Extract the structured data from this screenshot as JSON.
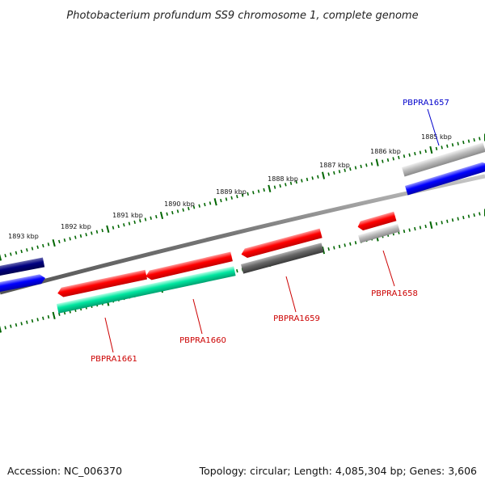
{
  "title": "Photobacterium profundum SS9 chromosome 1, complete genome",
  "footer": {
    "accession": "Accession: NC_006370",
    "summary": "Topology: circular; Length: 4,085,304 bp; Genes: 3,606"
  },
  "scale_labels": [
    "1885 kbp",
    "1886 kbp",
    "1887 kbp",
    "1888 kbp",
    "1889 kbp",
    "1890 kbp",
    "1891 kbp",
    "1892 kbp",
    "1893 kbp"
  ],
  "gene_labels": [
    {
      "id": "PBPRA1657",
      "color": "#0000cc"
    },
    {
      "id": "PBPRA1658",
      "color": "#cc0000"
    },
    {
      "id": "PBPRA1659",
      "color": "#cc0000"
    },
    {
      "id": "PBPRA1660",
      "color": "#cc0000"
    },
    {
      "id": "PBPRA1661",
      "color": "#cc0000"
    }
  ],
  "colors": {
    "red": "#ff0000",
    "teal": "#00e6a0",
    "blue": "#0000ff",
    "navy": "#000080",
    "dark_gray": "#666666",
    "light_gray": "#bbbbbb",
    "tick_green": "#006600"
  }
}
